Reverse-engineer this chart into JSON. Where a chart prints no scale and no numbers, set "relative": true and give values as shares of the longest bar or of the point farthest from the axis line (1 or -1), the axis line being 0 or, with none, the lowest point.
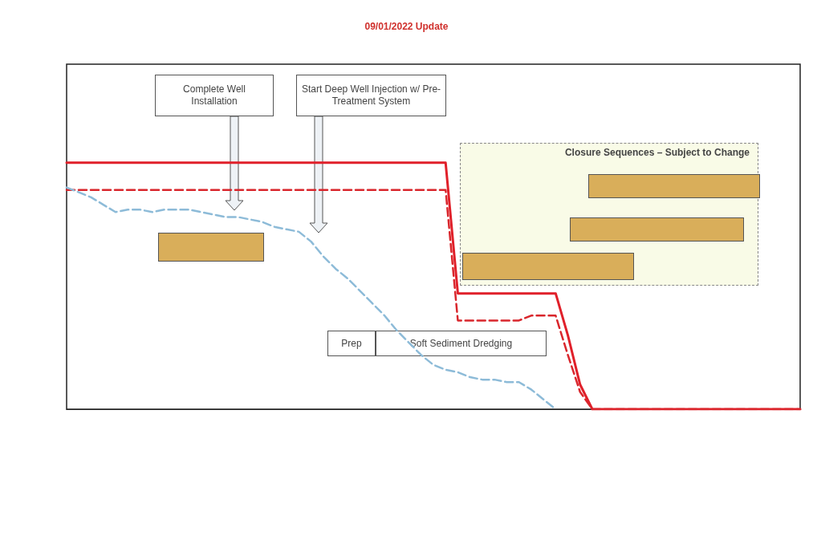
{
  "chart_data": {
    "type": "line",
    "title": "09/01/2022 Update",
    "relative": true,
    "marker": "none",
    "categories": [
      null,
      null,
      null,
      null,
      null,
      null,
      null,
      null,
      null,
      null,
      null,
      null,
      null,
      null,
      null,
      null,
      null,
      null,
      null,
      null,
      null,
      null,
      null,
      null,
      null,
      null,
      null,
      null,
      null,
      null,
      null,
      null,
      null,
      null,
      null,
      null,
      null,
      null,
      null,
      null,
      null,
      null,
      null,
      null,
      null,
      null,
      null,
      null,
      null,
      null,
      null,
      null,
      null,
      null,
      null,
      null,
      null,
      null,
      null,
      null,
      null
    ],
    "series": [
      {
        "color": "#e0202a",
        "line_style": "solid",
        "values": [
          1,
          1,
          1,
          1,
          1,
          1,
          1,
          1,
          1,
          1,
          1,
          1,
          1,
          1,
          1,
          1,
          1,
          1,
          1,
          1,
          1,
          1,
          1,
          1,
          1,
          1,
          1,
          1,
          1,
          1,
          1,
          1,
          0.47,
          0.47,
          0.47,
          0.47,
          0.47,
          0.47,
          0.47,
          0.47,
          0.47,
          0.3,
          0.1,
          0,
          0,
          0,
          0,
          0,
          0,
          0,
          0,
          0,
          0,
          0,
          0,
          0,
          0,
          0,
          0,
          0,
          0
        ]
      },
      {
        "color": "#d9262c",
        "line_style": "dashed",
        "values": [
          0.89,
          0.89,
          0.89,
          0.89,
          0.89,
          0.89,
          0.89,
          0.89,
          0.89,
          0.89,
          0.89,
          0.89,
          0.89,
          0.89,
          0.89,
          0.89,
          0.89,
          0.89,
          0.89,
          0.89,
          0.89,
          0.89,
          0.89,
          0.89,
          0.89,
          0.89,
          0.89,
          0.89,
          0.89,
          0.89,
          0.89,
          0.89,
          0.36,
          0.36,
          0.36,
          0.36,
          0.36,
          0.36,
          0.38,
          0.38,
          0.38,
          0.22,
          0.07,
          0,
          0,
          0,
          0,
          0,
          0,
          0,
          0,
          0,
          0,
          0,
          0,
          0,
          0,
          0,
          0,
          0,
          0
        ]
      },
      {
        "color": "#8dbbd8",
        "line_style": "dashed",
        "values": [
          0.9,
          0.88,
          0.86,
          0.83,
          0.8,
          0.81,
          0.81,
          0.8,
          0.81,
          0.81,
          0.81,
          0.8,
          0.79,
          0.78,
          0.78,
          0.77,
          0.76,
          0.74,
          0.73,
          0.72,
          0.68,
          0.62,
          0.57,
          0.53,
          0.48,
          0.43,
          0.38,
          0.32,
          0.27,
          0.22,
          0.18,
          0.16,
          0.15,
          0.13,
          0.12,
          0.12,
          0.11,
          0.11,
          0.08,
          0.04,
          0,
          null,
          null,
          null,
          null,
          null,
          null,
          null,
          null,
          null,
          null,
          null,
          null,
          null,
          null,
          null,
          null,
          null,
          null,
          null,
          null
        ]
      }
    ],
    "annotations": [
      "Complete Well Installation",
      "Start Deep Well Injection w/ Pre-Treatment System",
      "Closure Sequences – Subject to Change",
      "Prep",
      "Soft Sediment Dredging"
    ]
  }
}
